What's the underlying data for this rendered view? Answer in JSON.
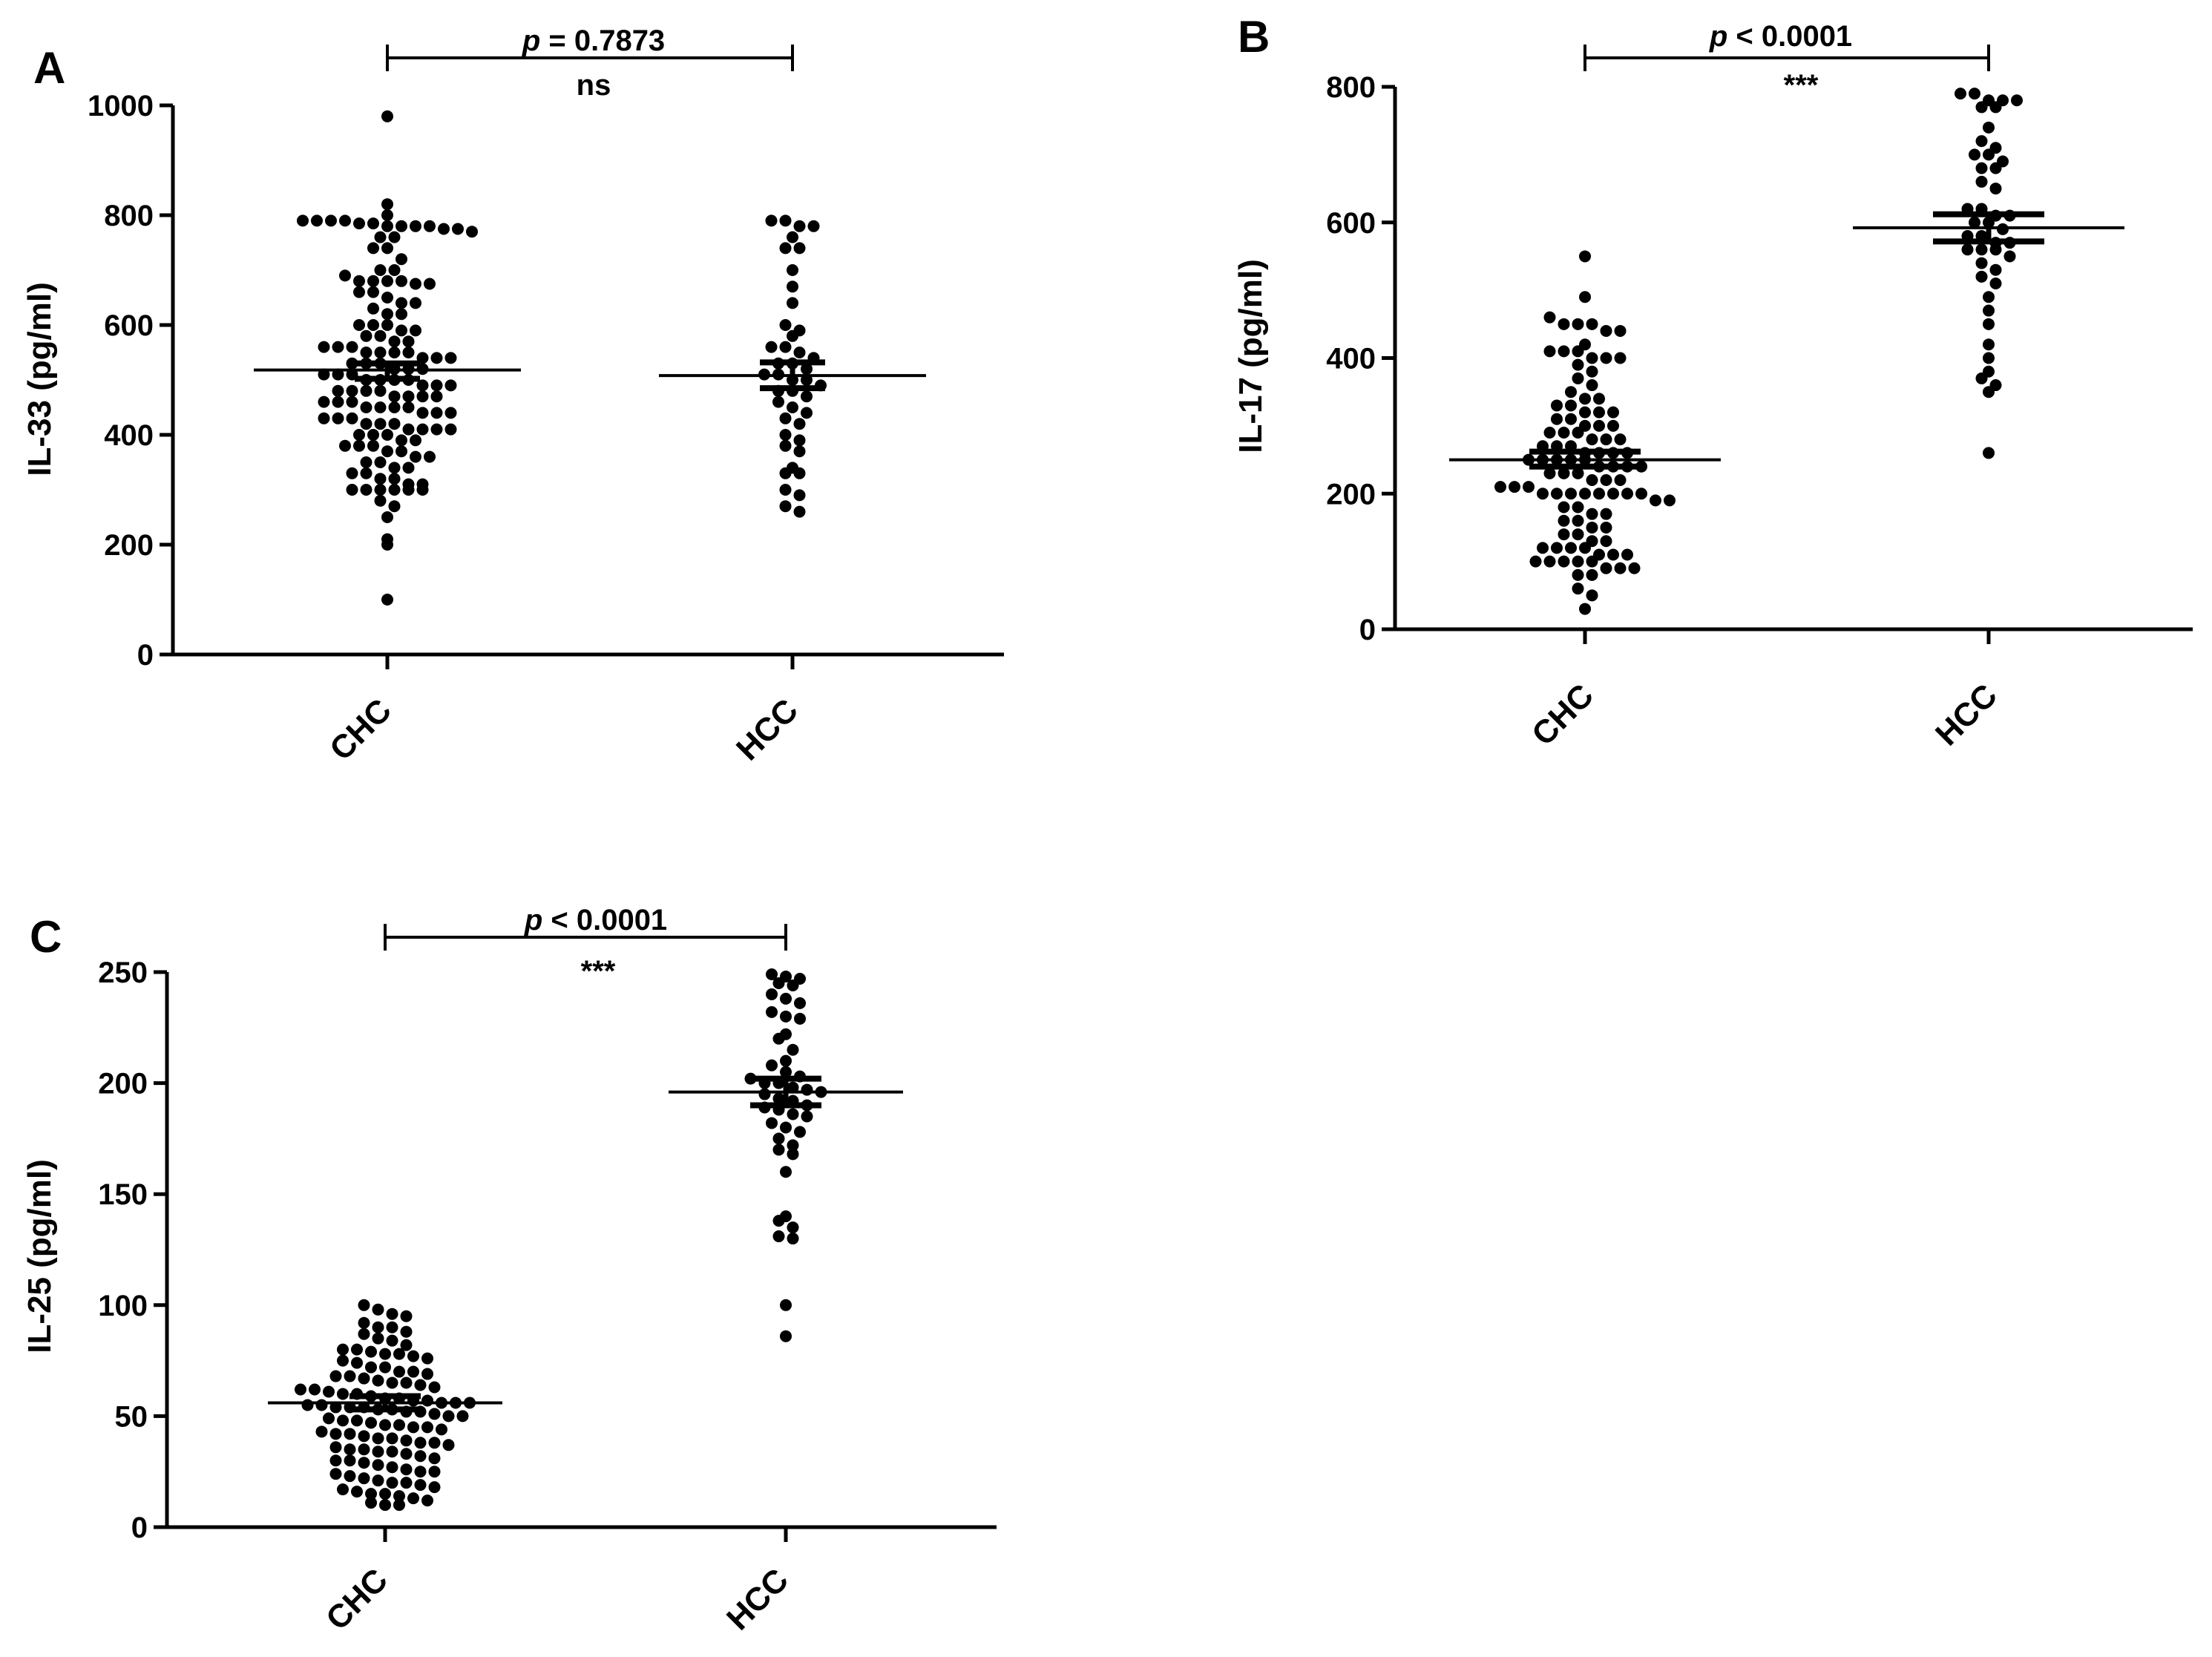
{
  "chart_data": [
    {
      "panel_label": "A",
      "type": "scatter",
      "ylabel": "IL-33 (pg/ml)",
      "categories": [
        "CHC",
        "HCC"
      ],
      "ylim": [
        0,
        1000
      ],
      "yticks": [
        0,
        200,
        400,
        600,
        800,
        1000
      ],
      "comparison": {
        "p_prefix": "p",
        "p_text": " = 0.7873",
        "sig": "ns"
      },
      "series": [
        {
          "name": "CHC",
          "mean": 518,
          "sem_low": 502,
          "sem_high": 530,
          "values": [
            980,
            820,
            800,
            790,
            790,
            790,
            790,
            785,
            785,
            780,
            780,
            780,
            780,
            775,
            775,
            770,
            760,
            760,
            740,
            740,
            720,
            700,
            700,
            690,
            680,
            680,
            680,
            680,
            675,
            675,
            660,
            660,
            650,
            640,
            640,
            630,
            620,
            620,
            600,
            600,
            600,
            590,
            590,
            580,
            580,
            570,
            570,
            560,
            560,
            560,
            550,
            550,
            550,
            550,
            540,
            540,
            540,
            530,
            530,
            530,
            520,
            520,
            520,
            510,
            510,
            510,
            500,
            500,
            500,
            500,
            490,
            490,
            490,
            480,
            480,
            480,
            480,
            470,
            470,
            470,
            470,
            460,
            460,
            460,
            450,
            450,
            450,
            450,
            440,
            440,
            440,
            430,
            430,
            430,
            420,
            420,
            420,
            410,
            410,
            410,
            410,
            400,
            400,
            400,
            390,
            390,
            380,
            380,
            380,
            370,
            370,
            360,
            360,
            350,
            350,
            340,
            340,
            330,
            330,
            320,
            320,
            310,
            310,
            300,
            300,
            300,
            300,
            300,
            300,
            280,
            270,
            250,
            210,
            200,
            100
          ]
        },
        {
          "name": "HCC",
          "mean": 508,
          "sem_low": 485,
          "sem_high": 532,
          "values": [
            790,
            790,
            780,
            780,
            760,
            740,
            740,
            700,
            670,
            640,
            600,
            590,
            580,
            560,
            560,
            550,
            540,
            530,
            530,
            520,
            510,
            510,
            500,
            500,
            490,
            480,
            480,
            470,
            460,
            450,
            440,
            430,
            420,
            400,
            390,
            380,
            370,
            340,
            330,
            330,
            300,
            290,
            270,
            260
          ]
        }
      ]
    },
    {
      "panel_label": "B",
      "type": "scatter",
      "ylabel": "IL-17 (pg/ml)",
      "categories": [
        "CHC",
        "HCC"
      ],
      "ylim": [
        0,
        800
      ],
      "yticks": [
        0,
        200,
        400,
        600,
        800
      ],
      "comparison": {
        "p_prefix": "p",
        "p_text": " < 0.0001",
        "sig": "***"
      },
      "series": [
        {
          "name": "CHC",
          "mean": 250,
          "sem_low": 240,
          "sem_high": 262,
          "values": [
            550,
            490,
            460,
            450,
            450,
            450,
            440,
            440,
            420,
            410,
            410,
            410,
            400,
            400,
            400,
            390,
            380,
            370,
            360,
            350,
            340,
            340,
            330,
            330,
            320,
            320,
            320,
            310,
            310,
            300,
            300,
            300,
            290,
            290,
            290,
            280,
            280,
            280,
            270,
            270,
            270,
            260,
            260,
            260,
            260,
            250,
            250,
            250,
            250,
            250,
            240,
            240,
            240,
            240,
            230,
            230,
            230,
            220,
            220,
            220,
            210,
            210,
            210,
            200,
            200,
            200,
            200,
            200,
            200,
            200,
            200,
            190,
            190,
            180,
            180,
            170,
            170,
            160,
            160,
            150,
            150,
            140,
            140,
            130,
            130,
            120,
            120,
            120,
            120,
            110,
            110,
            110,
            100,
            100,
            100,
            100,
            100,
            90,
            90,
            90,
            80,
            80,
            60,
            50,
            30
          ]
        },
        {
          "name": "HCC",
          "mean": 592,
          "sem_low": 572,
          "sem_high": 612,
          "values": [
            790,
            790,
            780,
            780,
            780,
            770,
            770,
            740,
            720,
            710,
            700,
            700,
            690,
            680,
            680,
            660,
            650,
            620,
            620,
            610,
            610,
            600,
            600,
            590,
            580,
            580,
            570,
            570,
            560,
            560,
            560,
            550,
            540,
            530,
            520,
            510,
            490,
            470,
            450,
            420,
            400,
            380,
            370,
            360,
            350,
            260
          ]
        }
      ]
    },
    {
      "panel_label": "C",
      "type": "scatter",
      "ylabel": "IL-25 (pg/ml)",
      "categories": [
        "CHC",
        "HCC"
      ],
      "ylim": [
        0,
        250
      ],
      "yticks": [
        0,
        50,
        100,
        150,
        200,
        250
      ],
      "comparison": {
        "p_prefix": "p",
        "p_text": " < 0.0001",
        "sig": "***"
      },
      "series": [
        {
          "name": "CHC",
          "mean": 56,
          "sem_low": 53,
          "sem_high": 59,
          "values": [
            100,
            98,
            96,
            95,
            92,
            90,
            90,
            88,
            87,
            85,
            84,
            82,
            80,
            80,
            79,
            78,
            78,
            77,
            76,
            75,
            74,
            72,
            72,
            70,
            70,
            69,
            68,
            68,
            67,
            66,
            65,
            65,
            64,
            63,
            62,
            62,
            61,
            60,
            60,
            59,
            58,
            58,
            57,
            57,
            56,
            56,
            56,
            55,
            55,
            54,
            54,
            54,
            53,
            53,
            52,
            52,
            51,
            50,
            50,
            49,
            48,
            48,
            47,
            46,
            46,
            45,
            45,
            44,
            43,
            42,
            42,
            41,
            40,
            40,
            39,
            38,
            38,
            37,
            36,
            35,
            35,
            34,
            34,
            33,
            32,
            31,
            30,
            30,
            29,
            28,
            27,
            26,
            25,
            25,
            24,
            23,
            22,
            21,
            20,
            20,
            19,
            18,
            17,
            16,
            15,
            15,
            14,
            13,
            12,
            11,
            10,
            10
          ]
        },
        {
          "name": "HCC",
          "mean": 196,
          "sem_low": 190,
          "sem_high": 202,
          "values": [
            249,
            248,
            247,
            245,
            244,
            240,
            238,
            236,
            232,
            230,
            229,
            222,
            220,
            215,
            210,
            208,
            205,
            203,
            202,
            200,
            200,
            198,
            197,
            196,
            195,
            193,
            192,
            190,
            189,
            188,
            186,
            185,
            182,
            180,
            178,
            175,
            172,
            170,
            168,
            160,
            140,
            138,
            135,
            131,
            130,
            100,
            86
          ]
        }
      ]
    }
  ]
}
